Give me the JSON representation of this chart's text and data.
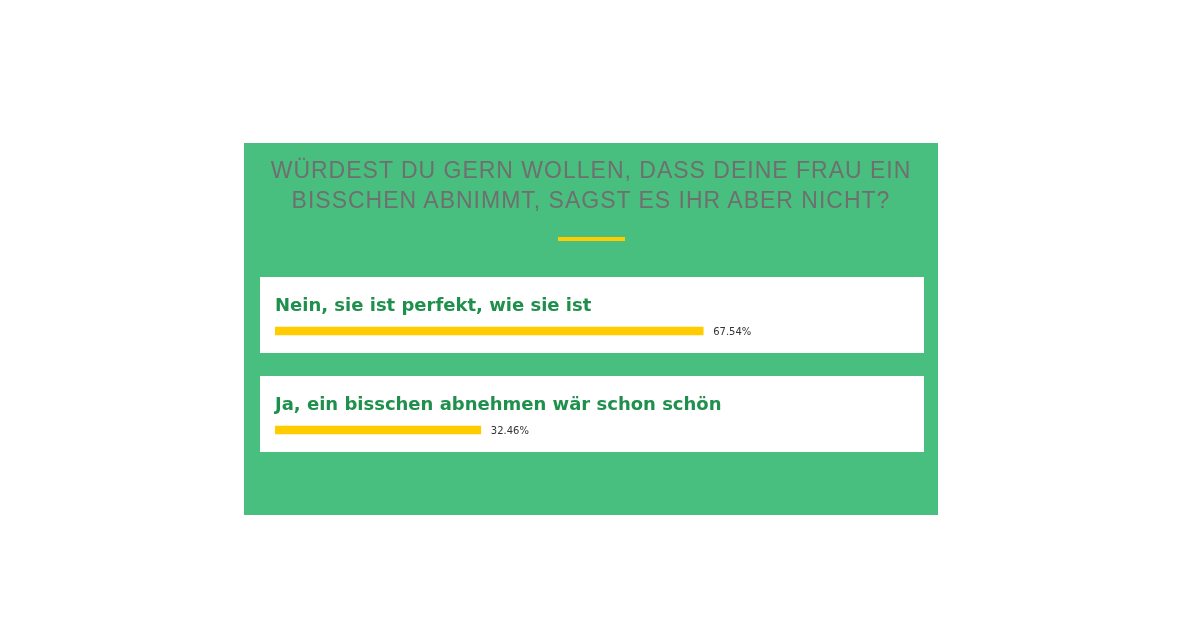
{
  "chart_data": {
    "type": "bar",
    "orientation": "horizontal",
    "title": "WÜRDEST DU GERN WOLLEN, DASS DEINE FRAU EIN BISSCHEN ABNIMMT, SAGST ES IHR ABER NICHT?",
    "categories": [
      "Nein, sie ist perfekt, wie sie ist",
      "Ja, ein bisschen abnehmen wär schon schön"
    ],
    "values": [
      67.54,
      32.46
    ],
    "value_labels": [
      "67.54%",
      "32.46%"
    ],
    "color": "#ffcc00",
    "tick_labels": false,
    "legend": false
  }
}
